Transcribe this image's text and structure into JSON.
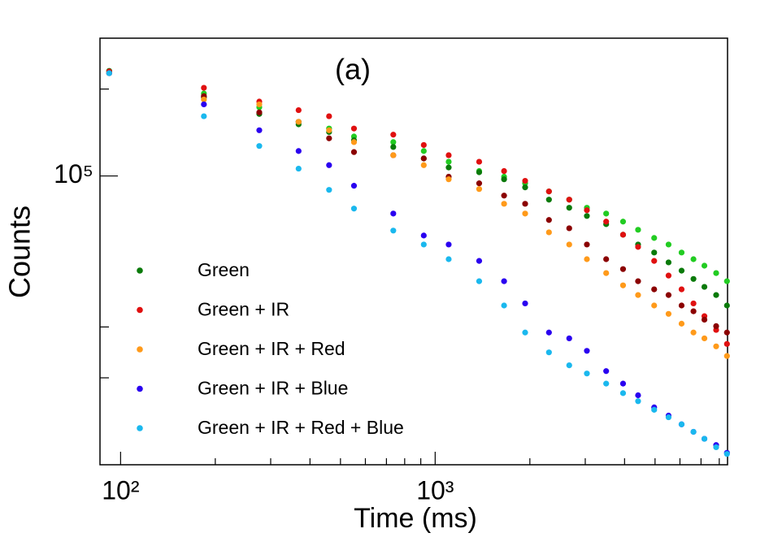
{
  "chart_data": {
    "type": "scatter",
    "annotation": "(a)",
    "x_label": "Time (ms)",
    "y_label": "Counts",
    "xlog": true,
    "ylog": true,
    "xlim": [
      86,
      8500
    ],
    "ylim": [
      10000,
      300000
    ],
    "xticks": [
      {
        "value": 100,
        "label": "10²"
      },
      {
        "value": 1000,
        "label": "10³"
      }
    ],
    "xminorticks": [
      200,
      300,
      400,
      500,
      600,
      700,
      800,
      900,
      2000,
      3000,
      4000,
      5000,
      6000,
      7000,
      8000
    ],
    "yticks": [
      {
        "value": 100000,
        "label": "10⁵"
      }
    ],
    "yminorticks": [
      20000,
      30000,
      200000
    ],
    "legend": "lower left",
    "x": [
      92,
      184,
      276,
      368,
      460,
      552,
      736,
      920,
      1104,
      1380,
      1656,
      1932,
      2300,
      2668,
      3036,
      3496,
      3956,
      4416,
      4968,
      5520,
      6072,
      6624,
      7176,
      7820,
      8464
    ],
    "series": [
      {
        "color": "#22cc22",
        "values": [
          231000,
          193000,
          173000,
          154000,
          146000,
          137000,
          131000,
          122000,
          112000,
          104000,
          99400,
          94300,
          88400,
          82800,
          77600,
          74100,
          69500,
          65100,
          61000,
          57900,
          54300,
          51500,
          48900,
          46100,
          43200
        ]
      },
      {
        "name": "Green",
        "color": "#0a7a0a",
        "values": [
          231000,
          187000,
          164000,
          151000,
          142000,
          133000,
          126000,
          115000,
          107000,
          103000,
          97400,
          91300,
          82800,
          77600,
          72700,
          68100,
          62600,
          57900,
          54300,
          50200,
          47000,
          44000,
          41300,
          38700,
          35600
        ]
      },
      {
        "name": "Green + IR",
        "color": "#e01010",
        "values": [
          230000,
          202000,
          181000,
          169000,
          161000,
          146000,
          139000,
          128000,
          118000,
          112000,
          104000,
          96200,
          88400,
          82800,
          76100,
          69500,
          62600,
          56800,
          50800,
          45200,
          40500,
          36200,
          32700,
          29300,
          26200
        ]
      },
      {
        "color": "#8b0000",
        "values": [
          227000,
          189000,
          166000,
          154000,
          135000,
          121000,
          118000,
          115000,
          99400,
          94300,
          85500,
          80100,
          70400,
          65900,
          57900,
          51500,
          47600,
          43200,
          40500,
          38700,
          35600,
          34000,
          31800,
          30200,
          28700
        ]
      },
      {
        "name": "Green + IR + Red",
        "color": "#ff9a1a",
        "values": [
          227000,
          184000,
          177000,
          154000,
          144000,
          131000,
          118000,
          109000,
          97400,
          90100,
          80100,
          74100,
          63800,
          57900,
          51500,
          46100,
          41800,
          38700,
          35600,
          33300,
          30800,
          28700,
          27400,
          25700,
          23800
        ]
      },
      {
        "name": "Green + IR + Blue",
        "color": "#2a00f0",
        "values": [
          227000,
          177000,
          144000,
          122000,
          109000,
          92500,
          74100,
          62200,
          57900,
          50800,
          43200,
          36200,
          28700,
          27400,
          24800,
          21100,
          19100,
          17400,
          15800,
          14800,
          13800,
          13000,
          12300,
          11700,
          11000
        ]
      },
      {
        "name": "Green + IR + Red + Blue",
        "color": "#1ab8ee",
        "values": [
          227000,
          161000,
          127000,
          106000,
          89500,
          77100,
          64700,
          57900,
          51500,
          43200,
          35600,
          28700,
          24500,
          22100,
          20700,
          19100,
          17700,
          16600,
          15500,
          14600,
          13800,
          13000,
          12300,
          11500,
          10900
        ]
      }
    ]
  }
}
